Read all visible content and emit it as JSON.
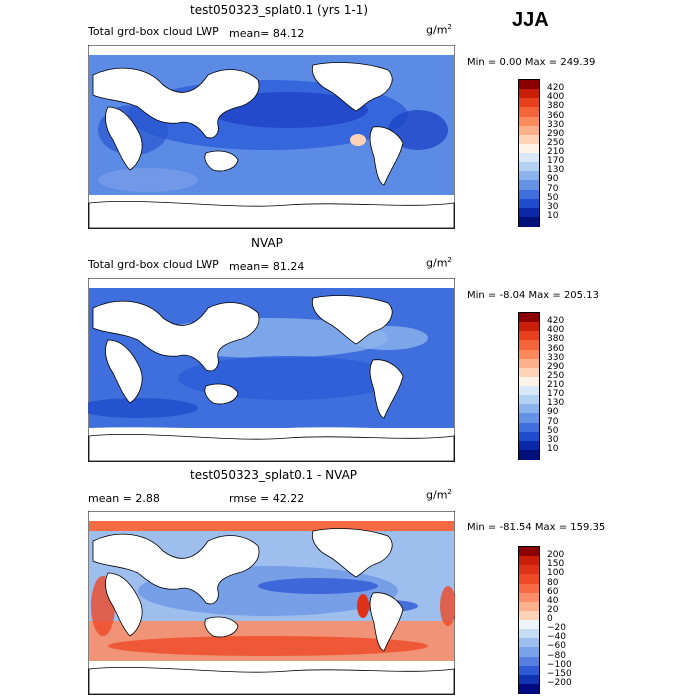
{
  "season": "JJA",
  "panels": [
    {
      "title": "test050323_splat0.1 (yrs 1-1)",
      "left_label": "Total grd-box cloud LWP",
      "stat": "mean=  84.12",
      "stat2": "",
      "units": "g/m",
      "units_sup": "2",
      "minmax": "Min =    0.00 Max = 249.39",
      "colorbar_labels": [
        "420",
        "400",
        "380",
        "360",
        "330",
        "290",
        "250",
        "210",
        "170",
        "130",
        "90",
        "70",
        "50",
        "30",
        "10"
      ],
      "colorbar_colors": [
        "#8b0000",
        "#c81e0a",
        "#e8401c",
        "#f4643a",
        "#fa8a5c",
        "#fcb08a",
        "#fdd3b8",
        "#fff2e6",
        "#d8e8f8",
        "#b3d1f2",
        "#8cb4ec",
        "#6692e6",
        "#3f6fdc",
        "#1f4ccc",
        "#0a28a8",
        "#00107a"
      ],
      "map_values": {
        "mean": 84.12,
        "min": 0.0,
        "max": 249.39
      }
    },
    {
      "title": "NVAP",
      "left_label": "Total grd-box cloud LWP",
      "stat": "mean=  81.24",
      "stat2": "",
      "units": "g/m",
      "units_sup": "2",
      "minmax": "Min =   -8.04 Max = 205.13",
      "colorbar_labels": [
        "420",
        "400",
        "380",
        "360",
        "330",
        "290",
        "250",
        "210",
        "170",
        "130",
        "90",
        "70",
        "50",
        "30",
        "10"
      ],
      "colorbar_colors": [
        "#8b0000",
        "#c81e0a",
        "#e8401c",
        "#f4643a",
        "#fa8a5c",
        "#fcb08a",
        "#fdd3b8",
        "#fff2e6",
        "#d8e8f8",
        "#b3d1f2",
        "#8cb4ec",
        "#6692e6",
        "#3f6fdc",
        "#1f4ccc",
        "#0a28a8",
        "#00107a"
      ],
      "map_values": {
        "mean": 81.24,
        "min": -8.04,
        "max": 205.13
      }
    },
    {
      "title": "test050323_splat0.1 - NVAP",
      "left_label": "mean =    2.88",
      "stat": "",
      "stat2": "rmse =   42.22",
      "units": "g/m",
      "units_sup": "2",
      "minmax": "Min = -81.54 Max = 159.35",
      "colorbar_labels": [
        "200",
        "150",
        "100",
        "80",
        "60",
        "40",
        "20",
        "0",
        "−20",
        "−40",
        "−60",
        "−80",
        "−100",
        "−150",
        "−200"
      ],
      "colorbar_colors": [
        "#8b0000",
        "#c81e0a",
        "#e03218",
        "#ee4a28",
        "#f66a44",
        "#fa8e68",
        "#fcb08e",
        "#fdd3b8",
        "#eef4fb",
        "#c6dcf4",
        "#9ebfee",
        "#7aa2e8",
        "#557ee0",
        "#2f5ad6",
        "#1034b4",
        "#000a80"
      ],
      "map_values": {
        "mean": 2.88,
        "rmse": 42.22,
        "min": -81.54,
        "max": 159.35
      }
    }
  ]
}
